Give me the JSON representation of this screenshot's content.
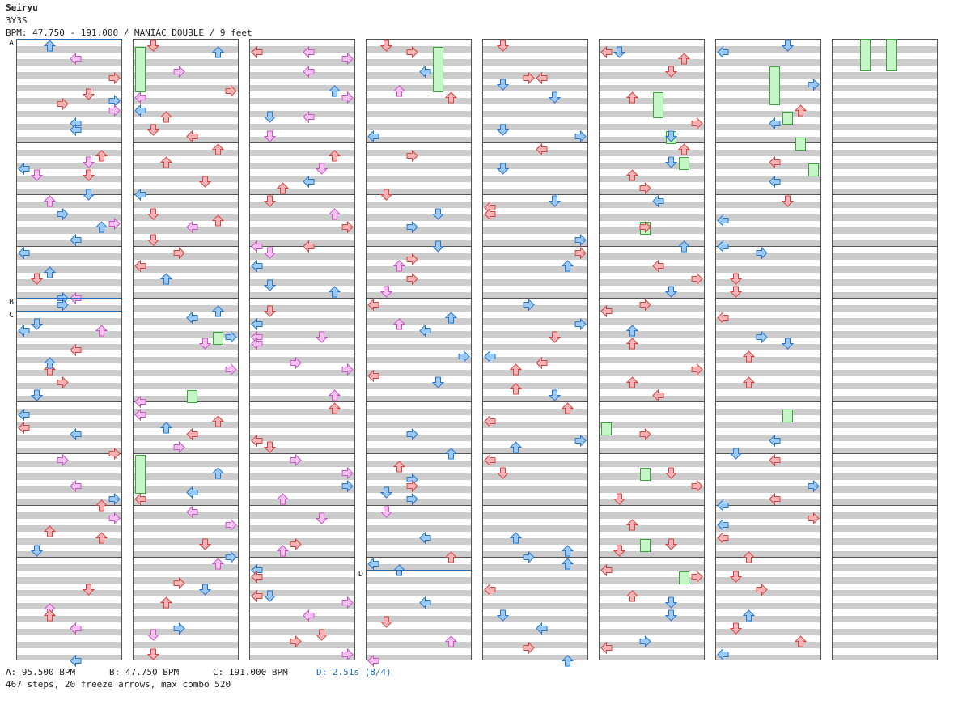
{
  "header": {
    "title": "Seiryu",
    "artist": "3Y3S",
    "bpm_line": "BPM: 47.750 - 191.000 / MANIAC DOUBLE / 9 feet"
  },
  "markers": [
    {
      "label": "A",
      "column": 1,
      "beat": 0
    },
    {
      "label": "B",
      "column": 1,
      "beat": 20
    },
    {
      "label": "C",
      "column": 1,
      "beat": 21
    },
    {
      "label": "D",
      "column": 4,
      "beat": 41
    }
  ],
  "footer": {
    "bpm_a": "A: 95.500 BPM",
    "bpm_b": "B: 47.750 BPM",
    "bpm_c": "C: 191.000 BPM",
    "stop_d": "D: 2.51s (8/4)",
    "summary": "467 steps, 20 freeze arrows, max combo 520"
  },
  "colors": {
    "red_fill": "#f6b3b3",
    "red_stroke": "#d44444",
    "blue_fill": "#9cc8f5",
    "blue_stroke": "#2a76c8",
    "pink_fill": "#f7c0f3",
    "pink_stroke": "#c656c0",
    "freeze_fill": "#c8f5c8",
    "freeze_stroke": "#33aa33",
    "marker_blue": "#1f6fc0"
  },
  "chart_data": {
    "type": "step-chart",
    "mode": "MANIAC DOUBLE",
    "difficulty": "9 feet",
    "lanes": [
      "L1",
      "D1",
      "U1",
      "R1",
      "L2",
      "D2",
      "U2",
      "R2"
    ],
    "columns": 8,
    "beats_per_column": 48,
    "note_counts": {
      "steps": 467,
      "freeze_arrows": 20,
      "max_combo": 520
    },
    "sample_notes": [
      {
        "col": 1,
        "beat": 4.25,
        "lane": 5,
        "color": "red"
      },
      {
        "col": 1,
        "beat": 4.75,
        "lane": 7,
        "color": "blue"
      },
      {
        "col": 1,
        "beat": 6.5,
        "lane": 4,
        "color": "blue"
      },
      {
        "col": 1,
        "beat": 10,
        "lane": 0,
        "color": "blue"
      },
      {
        "col": 1,
        "beat": 10.5,
        "lane": 1,
        "color": "pink"
      },
      {
        "col": 1,
        "beat": 14.25,
        "lane": 7,
        "color": "pink"
      },
      {
        "col": 1,
        "beat": 20,
        "lane": 3,
        "color": "blue"
      },
      {
        "col": 1,
        "beat": 22.5,
        "lane": 0,
        "color": "blue"
      },
      {
        "col": 1,
        "beat": 25.5,
        "lane": 2,
        "color": "red"
      },
      {
        "col": 1,
        "beat": 27.5,
        "lane": 1,
        "color": "blue"
      },
      {
        "col": 1,
        "beat": 30,
        "lane": 0,
        "color": "red"
      },
      {
        "col": 1,
        "beat": 36,
        "lane": 6,
        "color": "red"
      },
      {
        "col": 1,
        "beat": 45.5,
        "lane": 4,
        "color": "red"
      },
      {
        "col": 2,
        "beat": 0.5,
        "lane": 1,
        "color": "red"
      },
      {
        "col": 2,
        "beat": 6,
        "lane": 2,
        "color": "red"
      },
      {
        "col": 2,
        "beat": 14,
        "lane": 6,
        "color": "red"
      },
      {
        "col": 2,
        "beat": 23,
        "lane": 7,
        "color": "blue"
      },
      {
        "col": 2,
        "beat": 30,
        "lane": 2,
        "color": "blue"
      },
      {
        "col": 2,
        "beat": 40,
        "lane": 7,
        "color": "pink"
      },
      {
        "col": 2,
        "beat": 46,
        "lane": 1,
        "color": "pink"
      },
      {
        "col": 3,
        "beat": 1,
        "lane": 0,
        "color": "red"
      },
      {
        "col": 3,
        "beat": 6,
        "lane": 4,
        "color": "pink"
      },
      {
        "col": 3,
        "beat": 16,
        "lane": 0,
        "color": "pink"
      },
      {
        "col": 3,
        "beat": 23,
        "lane": 5,
        "color": "pink"
      },
      {
        "col": 3,
        "beat": 31,
        "lane": 0,
        "color": "red"
      },
      {
        "col": 3,
        "beat": 43,
        "lane": 0,
        "color": "red"
      },
      {
        "col": 4,
        "beat": 1,
        "lane": 3,
        "color": "red"
      },
      {
        "col": 4,
        "beat": 12,
        "lane": 1,
        "color": "red"
      },
      {
        "col": 4,
        "beat": 22,
        "lane": 2,
        "color": "pink"
      },
      {
        "col": 4,
        "beat": 35,
        "lane": 1,
        "color": "blue"
      },
      {
        "col": 4,
        "beat": 41,
        "lane": 2,
        "color": "blue"
      },
      {
        "col": 5,
        "beat": 3,
        "lane": 4,
        "color": "red"
      },
      {
        "col": 5,
        "beat": 13,
        "lane": 0,
        "color": "red"
      },
      {
        "col": 5,
        "beat": 25,
        "lane": 4,
        "color": "red"
      },
      {
        "col": 5,
        "beat": 40,
        "lane": 3,
        "color": "blue"
      },
      {
        "col": 6,
        "beat": 1,
        "lane": 1,
        "color": "blue"
      },
      {
        "col": 6,
        "beat": 21,
        "lane": 0,
        "color": "red"
      },
      {
        "col": 6,
        "beat": 47,
        "lane": 0,
        "color": "red"
      },
      {
        "col": 7,
        "beat": 1,
        "lane": 0,
        "color": "blue"
      },
      {
        "col": 7,
        "beat": 16,
        "lane": 0,
        "color": "blue"
      },
      {
        "col": 7,
        "beat": 36,
        "lane": 0,
        "color": "blue"
      }
    ],
    "freeze_arrows": [
      {
        "col": 2,
        "lane": 0,
        "start_beat": 1,
        "end_beat": 4.5
      },
      {
        "col": 2,
        "lane": 6,
        "start_beat": 23,
        "end_beat": 24
      },
      {
        "col": 2,
        "lane": 4,
        "start_beat": 27.5,
        "end_beat": 28.5
      },
      {
        "col": 2,
        "lane": 0,
        "start_beat": 32.5,
        "end_beat": 35.5
      },
      {
        "col": 4,
        "lane": 5,
        "start_beat": 1,
        "end_beat": 4.5
      },
      {
        "col": 6,
        "lane": 4,
        "start_beat": 4.5,
        "end_beat": 6.5
      },
      {
        "col": 6,
        "lane": 5,
        "start_beat": 7.5,
        "end_beat": 8.5
      },
      {
        "col": 6,
        "lane": 6,
        "start_beat": 9.5,
        "end_beat": 10.5
      },
      {
        "col": 6,
        "lane": 3,
        "start_beat": 14.5,
        "end_beat": 15.5
      },
      {
        "col": 6,
        "lane": 0,
        "start_beat": 30,
        "end_beat": 31
      },
      {
        "col": 6,
        "lane": 3,
        "start_beat": 33.5,
        "end_beat": 34.5
      },
      {
        "col": 6,
        "lane": 3,
        "start_beat": 39,
        "end_beat": 40
      },
      {
        "col": 6,
        "lane": 6,
        "start_beat": 41.5,
        "end_beat": 42.5
      },
      {
        "col": 7,
        "lane": 4,
        "start_beat": 2.5,
        "end_beat": 5.5
      },
      {
        "col": 7,
        "lane": 5,
        "start_beat": 6,
        "end_beat": 7
      },
      {
        "col": 7,
        "lane": 6,
        "start_beat": 8,
        "end_beat": 9
      },
      {
        "col": 7,
        "lane": 7,
        "start_beat": 10,
        "end_beat": 11
      },
      {
        "col": 7,
        "lane": 5,
        "start_beat": 29,
        "end_beat": 30
      },
      {
        "col": 8,
        "lane": 2,
        "start_beat": 0,
        "end_beat": 2.5
      },
      {
        "col": 8,
        "lane": 4,
        "start_beat": 0,
        "end_beat": 2.5
      }
    ]
  }
}
